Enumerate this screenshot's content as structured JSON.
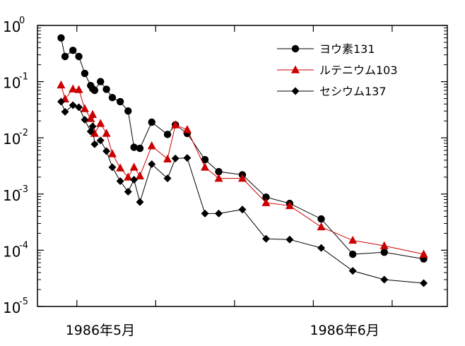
{
  "chart_data": {
    "type": "line",
    "title": "",
    "xlabel": "",
    "ylabel": "",
    "y_scale": "log",
    "ylim": [
      1e-05,
      1
    ],
    "y_ticks": [
      {
        "value": 1,
        "base": "10",
        "exp": "0"
      },
      {
        "value": 0.1,
        "base": "10",
        "exp": "-1"
      },
      {
        "value": 0.01,
        "base": "10",
        "exp": "-2"
      },
      {
        "value": 0.001,
        "base": "10",
        "exp": "-3"
      },
      {
        "value": 0.0001,
        "base": "10",
        "exp": "-4"
      },
      {
        "value": 1e-05,
        "base": "10",
        "exp": "-5"
      }
    ],
    "xlim": [
      "1986-04-25",
      "1986-06-16"
    ],
    "x_tick_labels": [
      {
        "x": "1986-05-01",
        "label": "1986年5月"
      },
      {
        "x": "1986-06-01",
        "label": "1986年6月"
      }
    ],
    "legend_position": "top-right",
    "grid": false,
    "series": [
      {
        "name": "ヨウ素131",
        "color": "#000000",
        "marker": "circle",
        "points": [
          {
            "x": "1986-04-28",
            "y": 0.6
          },
          {
            "x": "1986-04-28T12:00",
            "y": 0.28
          },
          {
            "x": "1986-04-29T12:00",
            "y": 0.36
          },
          {
            "x": "1986-04-30T06:00",
            "y": 0.28
          },
          {
            "x": "1986-05-01",
            "y": 0.14
          },
          {
            "x": "1986-05-01T18:00",
            "y": 0.085
          },
          {
            "x": "1986-05-02",
            "y": 0.075
          },
          {
            "x": "1986-05-02T06:00",
            "y": 0.07
          },
          {
            "x": "1986-05-03",
            "y": 0.1
          },
          {
            "x": "1986-05-03T18:00",
            "y": 0.073
          },
          {
            "x": "1986-05-04T12:00",
            "y": 0.052
          },
          {
            "x": "1986-05-05T12:00",
            "y": 0.044
          },
          {
            "x": "1986-05-06T12:00",
            "y": 0.03
          },
          {
            "x": "1986-05-07T06:00",
            "y": 0.0068
          },
          {
            "x": "1986-05-08",
            "y": 0.0065
          },
          {
            "x": "1986-05-09T12:00",
            "y": 0.019
          },
          {
            "x": "1986-05-11T12:00",
            "y": 0.0115
          },
          {
            "x": "1986-05-12T12:00",
            "y": 0.017
          },
          {
            "x": "1986-05-14",
            "y": 0.012
          },
          {
            "x": "1986-05-16T06:00",
            "y": 0.0041
          },
          {
            "x": "1986-05-18",
            "y": 0.0025
          },
          {
            "x": "1986-05-21",
            "y": 0.0022
          },
          {
            "x": "1986-05-24",
            "y": 0.00088
          },
          {
            "x": "1986-05-27",
            "y": 0.00068
          },
          {
            "x": "1986-05-31",
            "y": 0.00036
          },
          {
            "x": "1986-06-04",
            "y": 8.5e-05
          },
          {
            "x": "1986-06-08",
            "y": 9.2e-05
          },
          {
            "x": "1986-06-13",
            "y": 7e-05
          }
        ]
      },
      {
        "name": "ルテニウム103",
        "color": "#cc0000",
        "marker": "triangle",
        "points": [
          {
            "x": "1986-04-28",
            "y": 0.087
          },
          {
            "x": "1986-04-28T12:00",
            "y": 0.049
          },
          {
            "x": "1986-04-29T12:00",
            "y": 0.074
          },
          {
            "x": "1986-04-30T06:00",
            "y": 0.072
          },
          {
            "x": "1986-05-01",
            "y": 0.033
          },
          {
            "x": "1986-05-01T18:00",
            "y": 0.022
          },
          {
            "x": "1986-05-02",
            "y": 0.026
          },
          {
            "x": "1986-05-02T06:00",
            "y": 0.012
          },
          {
            "x": "1986-05-03",
            "y": 0.018
          },
          {
            "x": "1986-05-03T18:00",
            "y": 0.012
          },
          {
            "x": "1986-05-04T12:00",
            "y": 0.0052
          },
          {
            "x": "1986-05-05T12:00",
            "y": 0.0029
          },
          {
            "x": "1986-05-06T12:00",
            "y": 0.002
          },
          {
            "x": "1986-05-07T06:00",
            "y": 0.003
          },
          {
            "x": "1986-05-08",
            "y": 0.0021
          },
          {
            "x": "1986-05-09T12:00",
            "y": 0.0072
          },
          {
            "x": "1986-05-11T12:00",
            "y": 0.0042
          },
          {
            "x": "1986-05-12T12:00",
            "y": 0.017
          },
          {
            "x": "1986-05-14",
            "y": 0.014
          },
          {
            "x": "1986-05-16T06:00",
            "y": 0.003
          },
          {
            "x": "1986-05-18",
            "y": 0.0019
          },
          {
            "x": "1986-05-21",
            "y": 0.0019
          },
          {
            "x": "1986-05-24",
            "y": 0.0007
          },
          {
            "x": "1986-05-27",
            "y": 0.00062
          },
          {
            "x": "1986-05-31",
            "y": 0.00026
          },
          {
            "x": "1986-06-04",
            "y": 0.00015
          },
          {
            "x": "1986-06-08",
            "y": 0.00012
          },
          {
            "x": "1986-06-13",
            "y": 8.5e-05
          }
        ]
      },
      {
        "name": "セシウム137",
        "color": "#000000",
        "marker": "diamond",
        "points": [
          {
            "x": "1986-04-28",
            "y": 0.044
          },
          {
            "x": "1986-04-28T12:00",
            "y": 0.029
          },
          {
            "x": "1986-04-29T12:00",
            "y": 0.038
          },
          {
            "x": "1986-04-30T06:00",
            "y": 0.035
          },
          {
            "x": "1986-05-01",
            "y": 0.021
          },
          {
            "x": "1986-05-01T18:00",
            "y": 0.013
          },
          {
            "x": "1986-05-02",
            "y": 0.016
          },
          {
            "x": "1986-05-02T06:00",
            "y": 0.0077
          },
          {
            "x": "1986-05-03",
            "y": 0.009
          },
          {
            "x": "1986-05-03T18:00",
            "y": 0.0058
          },
          {
            "x": "1986-05-04T12:00",
            "y": 0.003
          },
          {
            "x": "1986-05-05T12:00",
            "y": 0.0017
          },
          {
            "x": "1986-05-06T12:00",
            "y": 0.0011
          },
          {
            "x": "1986-05-07T06:00",
            "y": 0.0018
          },
          {
            "x": "1986-05-08",
            "y": 0.00072
          },
          {
            "x": "1986-05-09T12:00",
            "y": 0.0034
          },
          {
            "x": "1986-05-11T12:00",
            "y": 0.0019
          },
          {
            "x": "1986-05-12T12:00",
            "y": 0.0043
          },
          {
            "x": "1986-05-14",
            "y": 0.0044
          },
          {
            "x": "1986-05-16T06:00",
            "y": 0.00045
          },
          {
            "x": "1986-05-18",
            "y": 0.00045
          },
          {
            "x": "1986-05-21",
            "y": 0.00053
          },
          {
            "x": "1986-05-24",
            "y": 0.00016
          },
          {
            "x": "1986-05-27",
            "y": 0.000155
          },
          {
            "x": "1986-05-31",
            "y": 0.00011
          },
          {
            "x": "1986-06-04",
            "y": 4.3e-05
          },
          {
            "x": "1986-06-08",
            "y": 3e-05
          },
          {
            "x": "1986-06-13",
            "y": 2.6e-05
          }
        ]
      }
    ]
  }
}
